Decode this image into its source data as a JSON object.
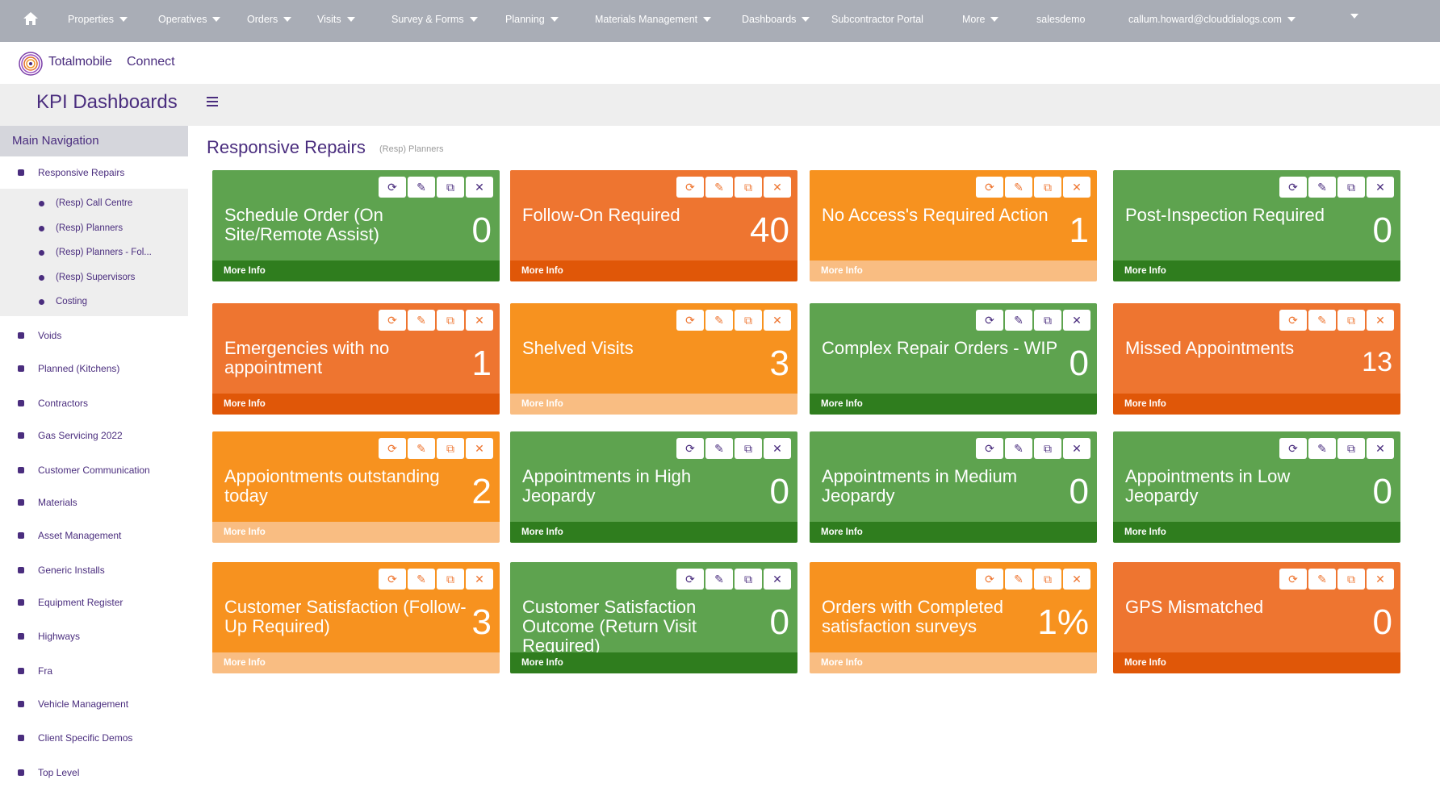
{
  "topnav": {
    "items": [
      {
        "label": "Properties",
        "caret": true
      },
      {
        "label": "Operatives",
        "caret": true
      },
      {
        "label": "Orders",
        "caret": true
      },
      {
        "label": "Visits",
        "caret": true
      },
      {
        "label": "Survey & Forms",
        "caret": true
      },
      {
        "label": "Planning",
        "caret": true
      },
      {
        "label": "Materials Management",
        "caret": true
      },
      {
        "label": "Dashboards",
        "caret": true
      },
      {
        "label": "Subcontractor Portal",
        "caret": false
      },
      {
        "label": "More",
        "caret": true
      },
      {
        "label": "salesdemo",
        "caret": false
      },
      {
        "label": "callum.howard@clouddialogs.com",
        "caret": true
      }
    ]
  },
  "brand": {
    "name": "Totalmobile",
    "product": "Connect"
  },
  "page": {
    "title": "KPI Dashboards"
  },
  "sidebar": {
    "header": "Main Navigation",
    "active": "Responsive Repairs",
    "subitems": [
      "(Resp) Call Centre",
      "(Resp) Planners",
      "(Resp) Planners - Fol...",
      "(Resp) Supervisors",
      "Costing"
    ],
    "items": [
      "Voids",
      "Planned (Kitchens)",
      "Contractors",
      "Gas Servicing 2022",
      "Customer Communication",
      "Materials",
      "Asset Management",
      "Generic Installs",
      "Equipment Register",
      "Highways",
      "Fra",
      "Vehicle Management",
      "Client Specific Demos",
      "Top Level"
    ]
  },
  "section": {
    "title": "Responsive Repairs",
    "subtitle": "(Resp) Planners"
  },
  "tile_footer": "More Info",
  "tiles": [
    {
      "title": "Schedule Order (On Site/Remote Assist)",
      "value": "0",
      "theme": "green"
    },
    {
      "title": "Follow-On Required",
      "value": "40",
      "theme": "orange"
    },
    {
      "title": "No Access's Required Action",
      "value": "1",
      "theme": "amber"
    },
    {
      "title": "Post-Inspection Required",
      "value": "0",
      "theme": "green"
    },
    {
      "title": "Emergencies with no appointment",
      "value": "1",
      "theme": "orange"
    },
    {
      "title": "Shelved Visits",
      "value": "3",
      "theme": "amber"
    },
    {
      "title": "Complex Repair Orders - WIP",
      "value": "0",
      "theme": "green"
    },
    {
      "title": "Missed Appointments",
      "value": "13",
      "theme": "orange"
    },
    {
      "title": "Appoiontments outstanding today",
      "value": "2",
      "theme": "amber"
    },
    {
      "title": "Appointments in High Jeopardy",
      "value": "0",
      "theme": "green"
    },
    {
      "title": "Appointments in Medium Jeopardy",
      "value": "0",
      "theme": "green"
    },
    {
      "title": "Appointments in Low Jeopardy",
      "value": "0",
      "theme": "green"
    },
    {
      "title": "Customer Satisfaction (Follow-Up Required)",
      "value": "3",
      "theme": "amber"
    },
    {
      "title": "Customer Satisfaction Outcome (Return Visit Required)",
      "value": "0",
      "theme": "green"
    },
    {
      "title": "Orders with Completed satisfaction surveys",
      "value": "1%",
      "theme": "amber"
    },
    {
      "title": "GPS Mismatched",
      "value": "0",
      "theme": "orange"
    }
  ],
  "icons": {
    "refresh": "refresh-icon",
    "edit": "pencil-icon",
    "copy": "copy-icon",
    "close": "close-icon"
  },
  "colors": {
    "brand": "#4a2d7e",
    "green": "#5ea34f",
    "green_dark": "#2f7d1e",
    "orange": "#ee7530",
    "orange_dark": "#e05708",
    "amber": "#f7921f",
    "amber_light": "#f9bd82",
    "nav_bg": "#a9adb6"
  }
}
